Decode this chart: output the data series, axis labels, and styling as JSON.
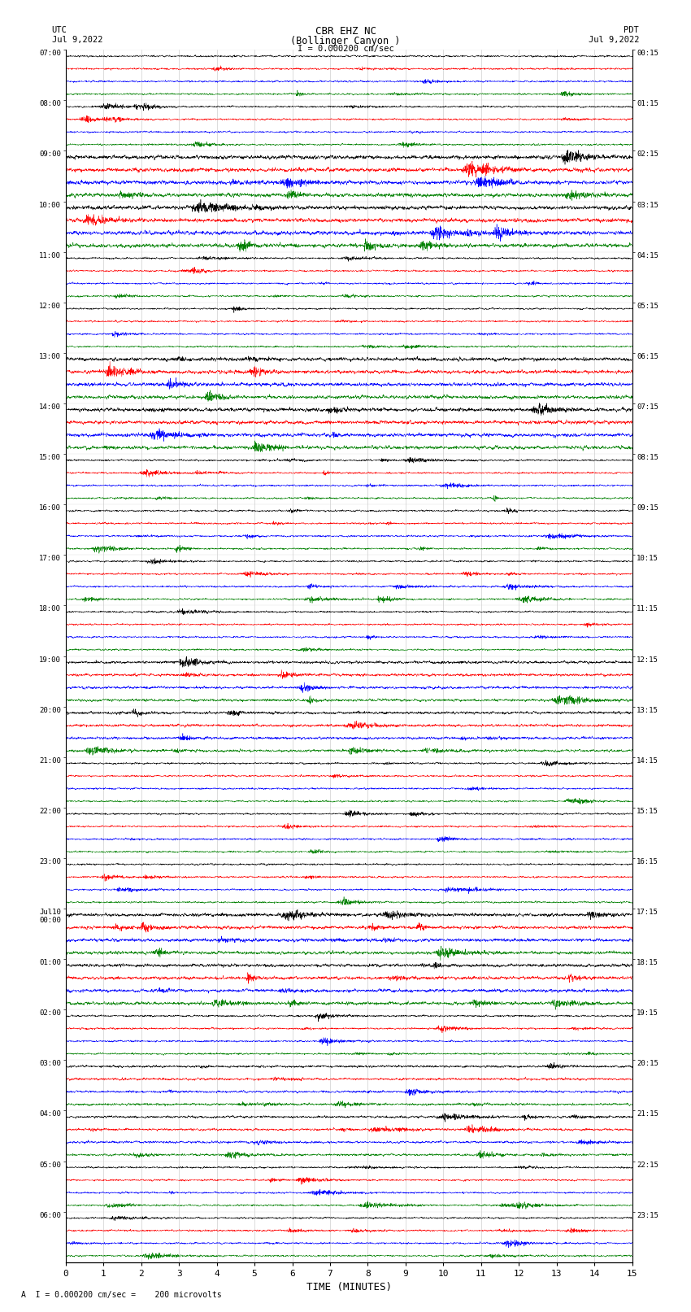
{
  "title_line1": "CBR EHZ NC",
  "title_line2": "(Bollinger Canyon )",
  "scale_label": "I = 0.000200 cm/sec",
  "bottom_label": "A  I = 0.000200 cm/sec =    200 microvolts",
  "xlabel": "TIME (MINUTES)",
  "left_header_line1": "UTC",
  "left_header_line2": "Jul 9,2022",
  "right_header_line1": "PDT",
  "right_header_line2": "Jul 9,2022",
  "left_time_labels": [
    "07:00",
    "08:00",
    "09:00",
    "10:00",
    "11:00",
    "12:00",
    "13:00",
    "14:00",
    "15:00",
    "16:00",
    "17:00",
    "18:00",
    "19:00",
    "20:00",
    "21:00",
    "22:00",
    "23:00",
    "Jul10\n00:00",
    "01:00",
    "02:00",
    "03:00",
    "04:00",
    "05:00",
    "06:00"
  ],
  "right_time_labels": [
    "00:15",
    "01:15",
    "02:15",
    "03:15",
    "04:15",
    "05:15",
    "06:15",
    "07:15",
    "08:15",
    "09:15",
    "10:15",
    "11:15",
    "12:15",
    "13:15",
    "14:15",
    "15:15",
    "16:15",
    "17:15",
    "18:15",
    "19:15",
    "20:15",
    "21:15",
    "22:15",
    "23:15"
  ],
  "num_rows": 24,
  "traces_per_row": 4,
  "colors": [
    "black",
    "red",
    "blue",
    "green"
  ],
  "xmin": 0,
  "xmax": 15,
  "xticks": [
    0,
    1,
    2,
    3,
    4,
    5,
    6,
    7,
    8,
    9,
    10,
    11,
    12,
    13,
    14,
    15
  ],
  "background_color": "white",
  "noise_seed": 42,
  "trace_amplitude": 0.12,
  "n_points": 3000
}
